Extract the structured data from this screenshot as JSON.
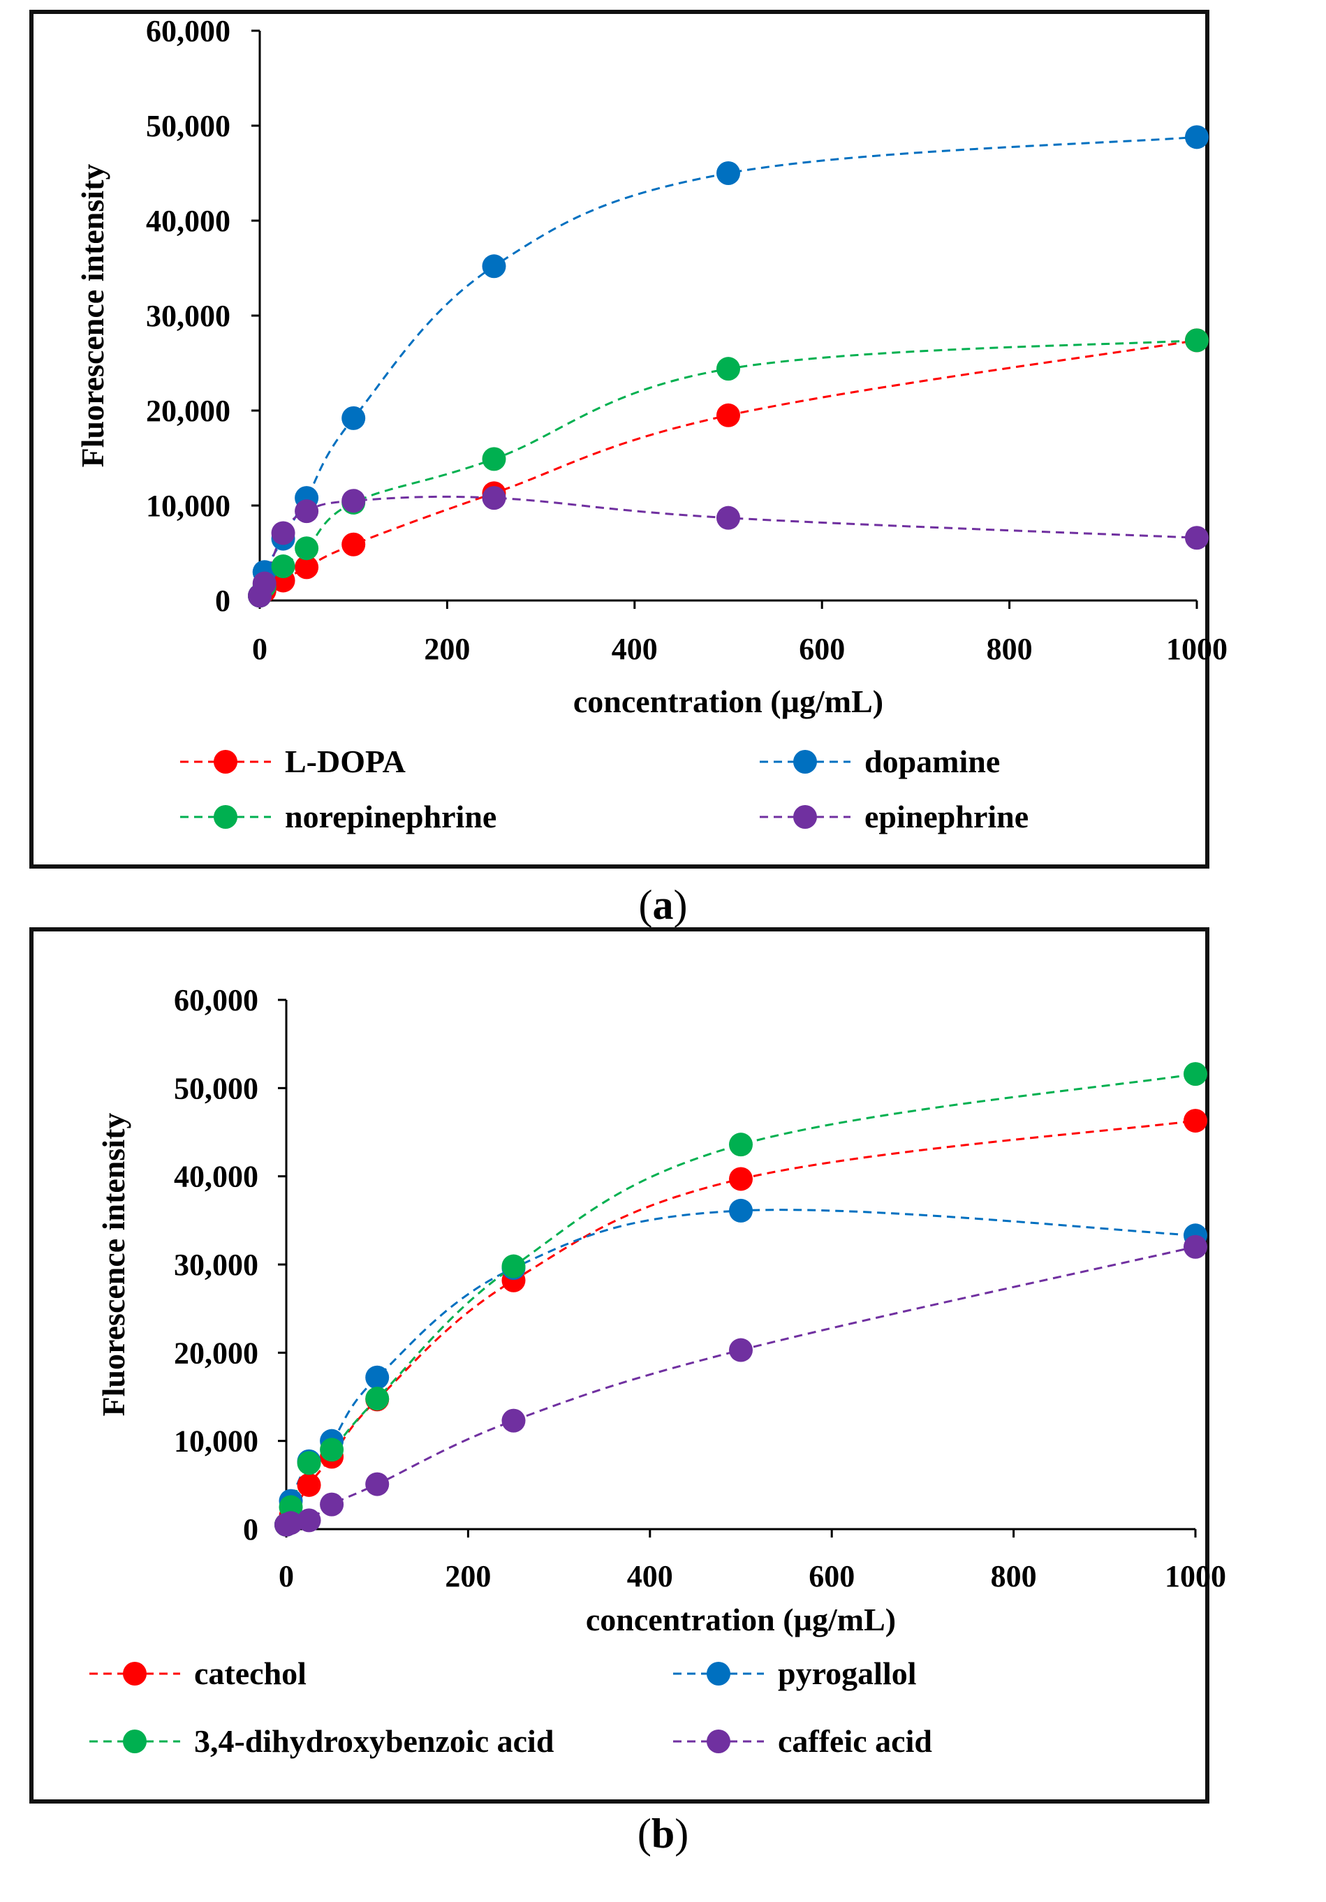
{
  "chart_data": [
    {
      "panel": "a",
      "type": "line",
      "xlabel": "concentration (µg/mL)",
      "ylabel": "Fluorescence intensity",
      "xlim": [
        0,
        1000
      ],
      "ylim": [
        0,
        60000
      ],
      "xticks": [
        0,
        200,
        400,
        600,
        800,
        1000
      ],
      "xtick_labels": [
        "0",
        "200",
        "400",
        "600",
        "800",
        "1000"
      ],
      "yticks": [
        0,
        10000,
        20000,
        30000,
        40000,
        50000,
        60000
      ],
      "ytick_labels": [
        "0",
        "10,000",
        "20,000",
        "30,000",
        "40,000",
        "50,000",
        "60,000"
      ],
      "grid": false,
      "legend_position": "bottom",
      "series": [
        {
          "name": "L-DOPA",
          "color": "#ff0000",
          "x": [
            0,
            5,
            25,
            50,
            100,
            250,
            500,
            1000
          ],
          "y": [
            500,
            1000,
            2100,
            3500,
            5900,
            11300,
            19500,
            27400
          ]
        },
        {
          "name": "dopamine",
          "color": "#0070c0",
          "x": [
            0,
            5,
            25,
            50,
            100,
            250,
            500,
            1000
          ],
          "y": [
            500,
            3000,
            6500,
            10800,
            19200,
            35200,
            45000,
            48800
          ]
        },
        {
          "name": "norepinephrine",
          "color": "#00b050",
          "x": [
            0,
            5,
            25,
            50,
            100,
            250,
            500,
            1000
          ],
          "y": [
            500,
            1500,
            3600,
            5500,
            10300,
            14900,
            24400,
            27400
          ]
        },
        {
          "name": "epinephrine",
          "color": "#7030a0",
          "x": [
            0,
            5,
            25,
            50,
            100,
            250,
            500,
            1000
          ],
          "y": [
            500,
            1800,
            7100,
            9400,
            10500,
            10800,
            8700,
            6600
          ]
        }
      ]
    },
    {
      "panel": "b",
      "type": "line",
      "xlabel": "concentration (µg/mL)",
      "ylabel": "Fluorescence intensity",
      "xlim": [
        0,
        1000
      ],
      "ylim": [
        0,
        60000
      ],
      "xticks": [
        0,
        200,
        400,
        600,
        800,
        1000
      ],
      "xtick_labels": [
        "0",
        "200",
        "400",
        "600",
        "800",
        "1000"
      ],
      "yticks": [
        0,
        10000,
        20000,
        30000,
        40000,
        50000,
        60000
      ],
      "ytick_labels": [
        "0",
        "10,000",
        "20,000",
        "30,000",
        "40,000",
        "50,000",
        "60,000"
      ],
      "grid": false,
      "legend_position": "bottom",
      "series": [
        {
          "name": "catechol",
          "color": "#ff0000",
          "x": [
            0,
            5,
            25,
            50,
            100,
            250,
            500,
            1000
          ],
          "y": [
            500,
            1500,
            5000,
            8200,
            14700,
            28200,
            39700,
            46300
          ]
        },
        {
          "name": "pyrogallol",
          "color": "#0070c0",
          "x": [
            0,
            5,
            25,
            50,
            100,
            250,
            500,
            1000
          ],
          "y": [
            500,
            3200,
            7700,
            10000,
            17200,
            29600,
            36100,
            33300
          ]
        },
        {
          "name": "3,4-dihydroxybenzoic acid",
          "color": "#00b050",
          "x": [
            0,
            5,
            25,
            50,
            100,
            250,
            500,
            1000
          ],
          "y": [
            500,
            2500,
            7500,
            9000,
            14800,
            29800,
            43600,
            51600
          ]
        },
        {
          "name": "caffeic acid",
          "color": "#7030a0",
          "x": [
            0,
            5,
            25,
            50,
            100,
            250,
            500,
            1000
          ],
          "y": [
            500,
            700,
            1000,
            2800,
            5100,
            12300,
            20300,
            32000
          ]
        }
      ]
    }
  ],
  "captions": {
    "a": "a",
    "b": "b"
  }
}
